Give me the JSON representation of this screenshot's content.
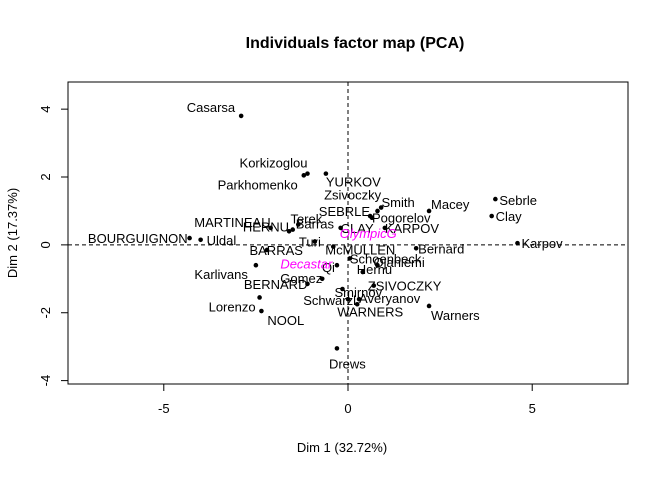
{
  "chart_data": {
    "type": "scatter",
    "title": "Individuals factor map (PCA)",
    "xlabel": "Dim 1 (32.72%)",
    "ylabel": "Dim 2 (17.37%)",
    "xlim": [
      -7.6,
      7.6
    ],
    "ylim": [
      -4.1,
      4.8
    ],
    "xticks": [
      -5,
      0,
      5
    ],
    "yticks": [
      -4,
      -2,
      0,
      2,
      4
    ],
    "reference_lines": {
      "x": 0,
      "y": 0,
      "style": "dashed"
    },
    "colors": {
      "points": "#000000",
      "supplementary": "#ff00ff"
    },
    "points": [
      {
        "label": "Casarsa",
        "x": -2.9,
        "y": 3.8,
        "anchor": "end",
        "dx": -6,
        "dy": -4
      },
      {
        "label": "Korkizoglou",
        "x": -1.1,
        "y": 2.1,
        "anchor": "end",
        "dx": 0,
        "dy": -6
      },
      {
        "label": "Parkhomenko",
        "x": -1.2,
        "y": 2.05,
        "anchor": "end",
        "dx": -6,
        "dy": 14
      },
      {
        "label": "YURKOV",
        "x": -0.6,
        "y": 2.1,
        "anchor": "start",
        "dx": 0,
        "dy": 13
      },
      {
        "label": "Zsivoczky",
        "x": 0.9,
        "y": 1.1,
        "anchor": "end",
        "dx": 0,
        "dy": -8
      },
      {
        "label": "Smith",
        "x": 0.8,
        "y": 1.0,
        "anchor": "start",
        "dx": 4,
        "dy": -4
      },
      {
        "label": "Macey",
        "x": 2.2,
        "y": 1.0,
        "anchor": "start",
        "dx": 2,
        "dy": -2
      },
      {
        "label": "Sebrle",
        "x": 4.0,
        "y": 1.35,
        "anchor": "start",
        "dx": 4,
        "dy": 6
      },
      {
        "label": "Clay",
        "x": 3.9,
        "y": 0.85,
        "anchor": "start",
        "dx": 4,
        "dy": 5
      },
      {
        "label": "SEBRLE",
        "x": 0.6,
        "y": 0.85,
        "anchor": "end",
        "dx": 0,
        "dy": 0
      },
      {
        "label": "Pogorelov",
        "x": 0.65,
        "y": 0.8,
        "anchor": "start",
        "dx": 0,
        "dy": 5
      },
      {
        "label": "MARTINEAU",
        "x": -2.1,
        "y": 0.5,
        "anchor": "end",
        "dx": 0,
        "dy": -1
      },
      {
        "label": "Terek",
        "x": -1.35,
        "y": 0.6,
        "anchor": "end",
        "dx": 24,
        "dy": -1
      },
      {
        "label": "HERNU",
        "x": -1.6,
        "y": 0.4,
        "anchor": "end",
        "dx": 0,
        "dy": 0
      },
      {
        "label": "Barras",
        "x": -1.5,
        "y": 0.45,
        "anchor": "start",
        "dx": 3,
        "dy": -1
      },
      {
        "label": "CLAY",
        "x": -0.2,
        "y": 0.5,
        "anchor": "start",
        "dx": 0,
        "dy": 5
      },
      {
        "label": "KARPOV",
        "x": 1.0,
        "y": 0.5,
        "anchor": "start",
        "dx": 0,
        "dy": 5
      },
      {
        "label": "BOURGUIGNON",
        "x": -4.3,
        "y": 0.2,
        "anchor": "end",
        "dx": -2,
        "dy": 5
      },
      {
        "label": "Uldal",
        "x": -4.0,
        "y": 0.15,
        "anchor": "start",
        "dx": 6,
        "dy": 5
      },
      {
        "label": "Turi",
        "x": -0.9,
        "y": 0.1,
        "anchor": "end",
        "dx": 6,
        "dy": 5
      },
      {
        "label": "BARRAS",
        "x": -2.2,
        "y": -0.15,
        "anchor": "end",
        "dx": 36,
        "dy": 5
      },
      {
        "label": "McMULLEN",
        "x": -0.4,
        "y": -0.05,
        "anchor": "start",
        "dx": -8,
        "dy": 8
      },
      {
        "label": "Bernard",
        "x": 1.85,
        "y": -0.1,
        "anchor": "start",
        "dx": 2,
        "dy": 5
      },
      {
        "label": "Karpov",
        "x": 4.6,
        "y": 0.05,
        "anchor": "start",
        "dx": 4,
        "dy": 5
      },
      {
        "label": "Schoenbeck",
        "x": 0.05,
        "y": -0.4,
        "anchor": "start",
        "dx": 0,
        "dy": 5
      },
      {
        "label": "Ojaniemi",
        "x": 0.8,
        "y": -0.6,
        "anchor": "start",
        "dx": -4,
        "dy": 2
      },
      {
        "label": "Karlivans",
        "x": -2.5,
        "y": -0.6,
        "anchor": "end",
        "dx": -8,
        "dy": 14
      },
      {
        "label": "Qi",
        "x": -0.3,
        "y": -0.6,
        "anchor": "end",
        "dx": -2,
        "dy": 7
      },
      {
        "label": "Hernu",
        "x": 0.4,
        "y": -0.8,
        "anchor": "start",
        "dx": -6,
        "dy": 2
      },
      {
        "label": "Gomez",
        "x": -0.7,
        "y": -1.0,
        "anchor": "end",
        "dx": 0,
        "dy": 4
      },
      {
        "label": "ZSIVOCZKY",
        "x": 0.7,
        "y": -1.2,
        "anchor": "start",
        "dx": -6,
        "dy": 5
      },
      {
        "label": "BERNARD",
        "x": -1.1,
        "y": -1.15,
        "anchor": "end",
        "dx": 0,
        "dy": 5
      },
      {
        "label": "Smirnov",
        "x": -0.15,
        "y": -1.3,
        "anchor": "start",
        "dx": -8,
        "dy": 8
      },
      {
        "label": "Schwarzl",
        "x": 0.0,
        "y": -1.6,
        "anchor": "end",
        "dx": 8,
        "dy": 6
      },
      {
        "label": "Averyanov",
        "x": 0.3,
        "y": -1.6,
        "anchor": "start",
        "dx": 0,
        "dy": 4
      },
      {
        "label": "Lorenzo",
        "x": -2.4,
        "y": -1.55,
        "anchor": "end",
        "dx": -4,
        "dy": 14
      },
      {
        "label": "WARNERS",
        "x": 0.25,
        "y": -1.75,
        "anchor": "start",
        "dx": -20,
        "dy": 12
      },
      {
        "label": "Warners",
        "x": 2.2,
        "y": -1.8,
        "anchor": "start",
        "dx": 2,
        "dy": 14
      },
      {
        "label": "NOOL",
        "x": -2.35,
        "y": -1.95,
        "anchor": "start",
        "dx": 6,
        "dy": 14
      },
      {
        "label": "Drews",
        "x": -0.3,
        "y": -3.05,
        "anchor": "start",
        "dx": -8,
        "dy": 20
      }
    ],
    "supplementary": [
      {
        "label": "OlympicG",
        "x": 0.55,
        "y": 0.35,
        "anchor": "middle",
        "dx": 0,
        "dy": 5
      },
      {
        "label": "Decastar",
        "x": -2.0,
        "y": -0.55,
        "anchor": "start",
        "dx": 6,
        "dy": 5
      }
    ]
  }
}
